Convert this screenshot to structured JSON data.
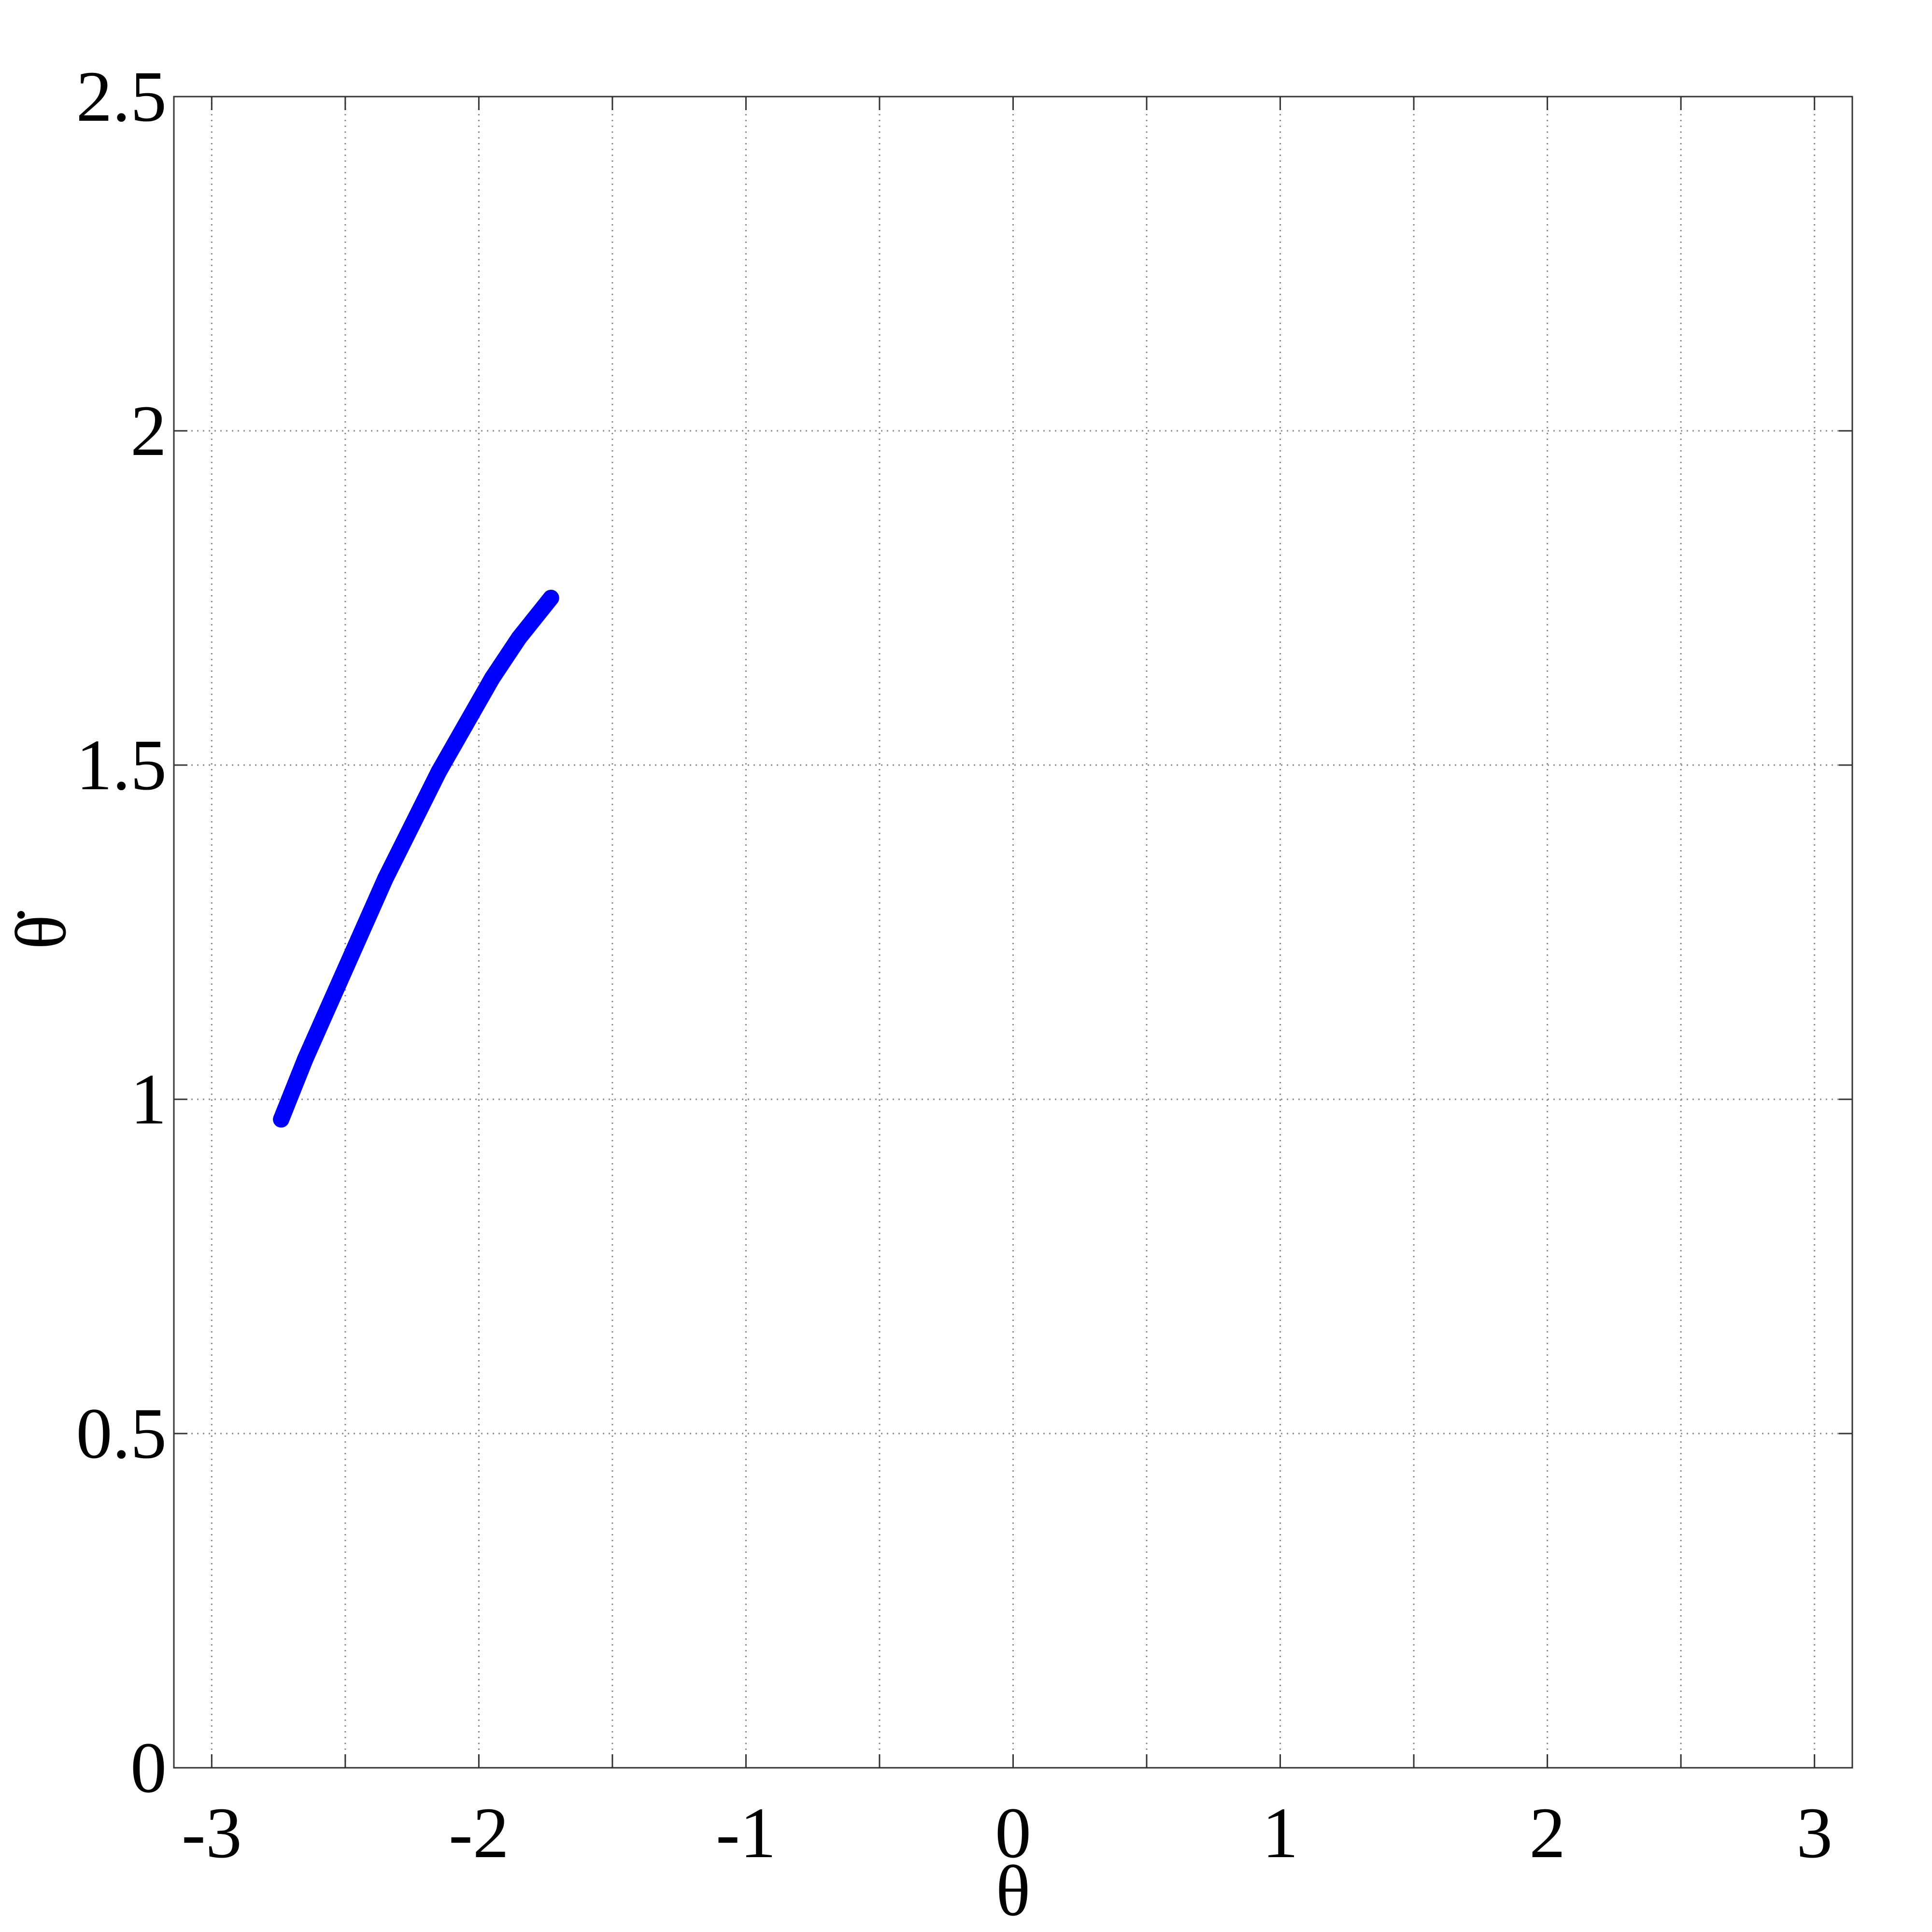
{
  "chart_data": {
    "type": "line",
    "xlabel": "θ",
    "ylabel": "θ̇",
    "xlim": [
      -3.14159,
      3.14159
    ],
    "ylim": [
      0,
      2.5
    ],
    "xticks": [
      -3,
      -2.5,
      -2,
      -1.5,
      -1,
      -0.5,
      0,
      0.5,
      1,
      1.5,
      2,
      2.5,
      3
    ],
    "xtick_labels": [
      "-3",
      "",
      "-2",
      "",
      "-1",
      "",
      "0",
      "",
      "1",
      "",
      "2",
      "",
      "3"
    ],
    "yticks": [
      0,
      0.5,
      1,
      1.5,
      2,
      2.5
    ],
    "ytick_labels": [
      "0",
      "0.5",
      "1",
      "1.5",
      "2",
      "2.5"
    ],
    "grid": true,
    "series": [
      {
        "color": "#0000ff",
        "x": [
          -2.74,
          -2.65,
          -2.55,
          -2.45,
          -2.35,
          -2.25,
          -2.15,
          -2.05,
          -1.95,
          -1.85,
          -1.73
        ],
        "y": [
          0.97,
          1.06,
          1.15,
          1.24,
          1.33,
          1.41,
          1.49,
          1.56,
          1.63,
          1.69,
          1.75
        ]
      }
    ]
  }
}
